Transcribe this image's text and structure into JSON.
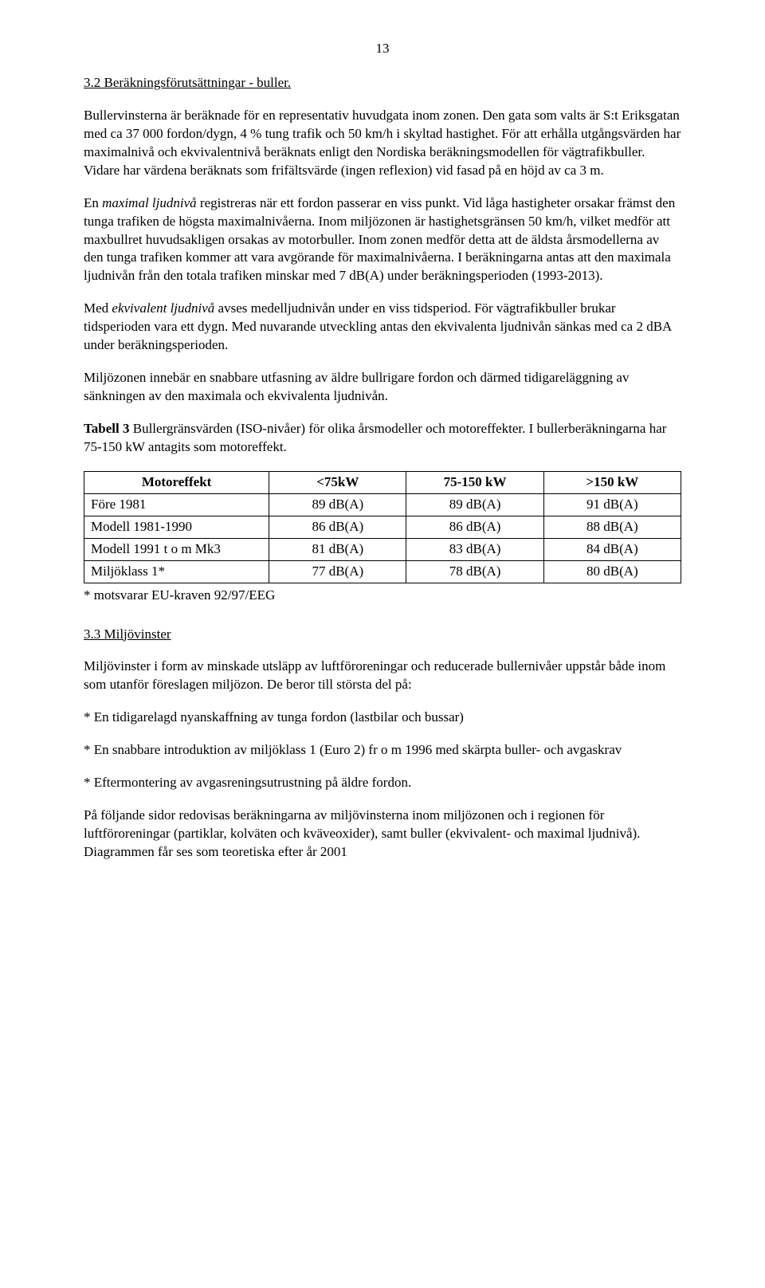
{
  "pageNumber": "13",
  "h1": "3.2 Beräkningsförutsättningar - buller.",
  "p1": "Bullervinsterna är beräknade för en representativ huvudgata inom zonen. Den gata som valts är S:t Eriksgatan med ca 37 000 fordon/dygn, 4 % tung trafik och 50 km/h i skyltad hastighet. För att erhålla utgångsvärden har maximalnivå och ekvivalentnivå beräknats enligt den Nordiska beräkningsmodellen för vägtrafikbuller. Vidare har värdena beräknats som frifältsvärde (ingen reflexion) vid fasad på en höjd av ca 3 m.",
  "p2a": "En ",
  "p2i": "maximal ljudnivå",
  "p2b": " registreras när ett fordon passerar en viss punkt. Vid låga hastigheter orsakar främst den tunga trafiken de högsta maximalnivåerna. Inom miljözonen är hastighetsgränsen 50 km/h, vilket medför att maxbullret huvudsakligen orsakas av motorbuller. Inom zonen medför detta att de äldsta årsmodellerna av den tunga trafiken kommer att vara avgörande för maximalnivåerna. I beräkningarna antas att den maximala ljudnivån från den totala trafiken minskar med 7 dB(A) under beräkningsperioden (1993-2013).",
  "p3a": "Med ",
  "p3i": "ekvivalent ljudnivå",
  "p3b": " avses medelljudnivån under en viss tidsperiod. För vägtrafikbuller brukar tidsperioden vara ett dygn. Med nuvarande utveckling antas den ekvivalenta ljudnivån sänkas med ca 2 dBA under beräkningsperioden.",
  "p4": "Miljözonen innebär en snabbare utfasning av äldre bullrigare fordon och därmed tidigareläggning av sänkningen av den maximala och ekvivalenta  ljudnivån.",
  "p5a": "Tabell 3",
  "p5b": " Bullergränsvärden (ISO-nivåer) för olika årsmodeller och motoreffekter. I bullerberäkningarna har 75-150 kW antagits som motoreffekt.",
  "table": {
    "headers": [
      "Motoreffekt",
      "<75kW",
      "75-150 kW",
      ">150 kW"
    ],
    "rows": [
      [
        "Före 1981",
        "89 dB(A)",
        "89 dB(A)",
        "91 dB(A)"
      ],
      [
        "Modell 1981-1990",
        "86 dB(A)",
        "86 dB(A)",
        "88 dB(A)"
      ],
      [
        "Modell 1991 t o m Mk3",
        "81 dB(A)",
        "83 dB(A)",
        "84 dB(A)"
      ],
      [
        "Miljöklass 1*",
        "77 dB(A)",
        "78 dB(A)",
        "80 dB(A)"
      ]
    ],
    "footnote": "* motsvarar EU-kraven 92/97/EEG"
  },
  "h2": "3.3 Miljövinster",
  "p6": "Miljövinster i form av minskade utsläpp av luftföroreningar och reducerade bullernivåer uppstår både inom som utanför föreslagen miljözon. De beror till största del på:",
  "b1": "* En tidigarelagd nyanskaffning av tunga fordon (lastbilar och bussar)",
  "b2": "* En snabbare introduktion av miljöklass 1 (Euro 2) fr o m 1996 med skärpta buller- och avgaskrav",
  "b3": "* Eftermontering av avgasreningsutrustning på äldre fordon.",
  "p7": "På följande sidor redovisas beräkningarna av miljövinsterna inom miljözonen och i regionen för luftföroreningar (partiklar, kolväten och kväveoxider), samt buller (ekvivalent- och maximal ljudnivå).  Diagrammen får ses som teoretiska efter år 2001"
}
